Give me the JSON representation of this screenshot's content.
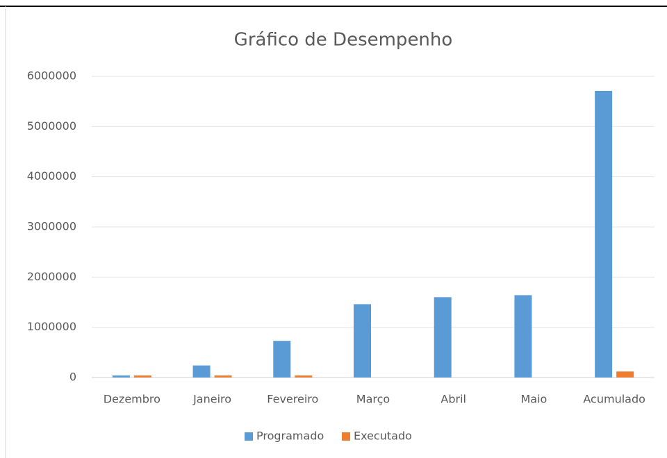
{
  "chart_data": {
    "type": "bar",
    "title": "Gráfico de Desempenho",
    "categories": [
      "Dezembro",
      "Janeiro",
      "Fevereiro",
      "Março",
      "Abril",
      "Maio",
      "Acumulado"
    ],
    "series": [
      {
        "name": "Programado",
        "color": "#5b9bd5",
        "values": [
          40000,
          240000,
          730000,
          1460000,
          1600000,
          1640000,
          5710000
        ]
      },
      {
        "name": "Executado",
        "color": "#ed7d31",
        "values": [
          40000,
          40000,
          40000,
          0,
          0,
          0,
          120000
        ]
      }
    ],
    "ylim": [
      0,
      6000000
    ],
    "yticks": [
      0,
      1000000,
      2000000,
      3000000,
      4000000,
      5000000,
      6000000
    ],
    "grid": true,
    "legend": "bottom"
  }
}
